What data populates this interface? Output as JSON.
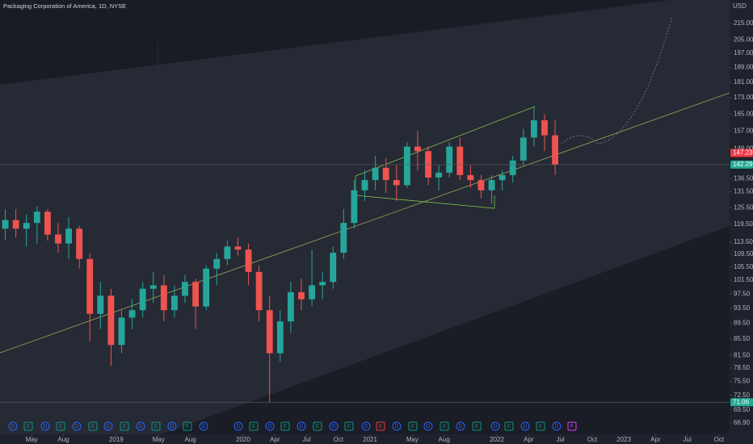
{
  "chart_data": {
    "type": "candlestick",
    "title": "Packaging Corporation of America, 1D, NYSE",
    "currency": "USD",
    "log": true,
    "up_color": "#26a69a",
    "down_color": "#ef5350",
    "ylim": [
      64.7,
      230.2
    ],
    "xlim": [
      "2018-02",
      "2023-11"
    ],
    "yticks": [
      {
        "value": 215,
        "label": "215.00"
      },
      {
        "value": 205,
        "label": "205.00"
      },
      {
        "value": 197,
        "label": "197.00"
      },
      {
        "value": 189,
        "label": "189.00"
      },
      {
        "value": 181,
        "label": "181.00"
      },
      {
        "value": 173,
        "label": "173.00"
      },
      {
        "value": 165,
        "label": "165.00"
      },
      {
        "value": 157,
        "label": "157.00"
      },
      {
        "value": 149,
        "label": "149.00"
      },
      {
        "value": 136.5,
        "label": "136.50"
      },
      {
        "value": 131.5,
        "label": "131.50"
      },
      {
        "value": 125.5,
        "label": "125.50"
      },
      {
        "value": 119.5,
        "label": "119.50"
      },
      {
        "value": 113.5,
        "label": "113.50"
      },
      {
        "value": 109.5,
        "label": "109.50"
      },
      {
        "value": 105.5,
        "label": "105.50"
      },
      {
        "value": 101.5,
        "label": "101.50"
      },
      {
        "value": 97.5,
        "label": "97.50"
      },
      {
        "value": 93.5,
        "label": "93.50"
      },
      {
        "value": 89.5,
        "label": "89.50"
      },
      {
        "value": 85.5,
        "label": "85.50"
      },
      {
        "value": 81.5,
        "label": "81.50"
      },
      {
        "value": 78.5,
        "label": "78.50"
      },
      {
        "value": 75.5,
        "label": "75.50"
      },
      {
        "value": 72.5,
        "label": "72.50"
      },
      {
        "value": 69.5,
        "label": "69.50"
      },
      {
        "value": 66.9,
        "label": "66.90"
      }
    ],
    "xticks": [
      {
        "value": "2018-05",
        "label": "May"
      },
      {
        "value": "2018-08",
        "label": "Aug"
      },
      {
        "value": "2019-01",
        "label": "2019"
      },
      {
        "value": "2019-05",
        "label": "May"
      },
      {
        "value": "2019-08",
        "label": "Aug"
      },
      {
        "value": "2020-01",
        "label": "2020"
      },
      {
        "value": "2020-04",
        "label": "Apr"
      },
      {
        "value": "2020-07",
        "label": "Jul"
      },
      {
        "value": "2020-10",
        "label": "Oct"
      },
      {
        "value": "2021-01",
        "label": "2021"
      },
      {
        "value": "2021-05",
        "label": "May"
      },
      {
        "value": "2021-08",
        "label": "Aug"
      },
      {
        "value": "2022-01",
        "label": "2022"
      },
      {
        "value": "2022-04",
        "label": "Apr"
      },
      {
        "value": "2022-07",
        "label": "Jul"
      },
      {
        "value": "2022-10",
        "label": "Oct"
      },
      {
        "value": "2023-01",
        "label": "2023"
      },
      {
        "value": "2023-04",
        "label": "Apr"
      },
      {
        "value": "2023-07",
        "label": "Jul"
      },
      {
        "value": "2023-10",
        "label": "Oct"
      }
    ],
    "price_labels": [
      {
        "value": 147.23,
        "label": "147.23",
        "color": "#f23645"
      },
      {
        "value": 142.29,
        "label": "142.29",
        "color": "#22ab94"
      },
      {
        "value": 71.06,
        "label": "71.06",
        "color": "#22ab94"
      }
    ],
    "x": [
      "2018-02",
      "2018-03",
      "2018-04",
      "2018-05",
      "2018-06",
      "2018-07",
      "2018-08",
      "2018-09",
      "2018-10",
      "2018-11",
      "2018-12",
      "2019-01",
      "2019-02",
      "2019-03",
      "2019-04",
      "2019-05",
      "2019-06",
      "2019-07",
      "2019-08",
      "2019-09",
      "2019-10",
      "2019-11",
      "2019-12",
      "2020-01",
      "2020-02",
      "2020-03",
      "2020-04",
      "2020-05",
      "2020-06",
      "2020-07",
      "2020-08",
      "2020-09",
      "2020-10",
      "2020-11",
      "2020-12",
      "2021-01",
      "2021-02",
      "2021-03",
      "2021-04",
      "2021-05",
      "2021-06",
      "2021-07",
      "2021-08",
      "2021-09",
      "2021-10",
      "2021-11",
      "2021-12",
      "2022-01",
      "2022-02",
      "2022-03",
      "2022-04",
      "2022-05",
      "2022-06"
    ],
    "open": [
      118,
      121,
      118,
      120,
      124,
      116,
      113,
      118,
      108,
      92,
      97,
      84,
      91,
      93,
      99,
      100,
      93,
      97,
      101,
      94,
      105,
      108,
      112,
      111,
      104,
      93,
      82,
      90,
      98,
      96,
      100,
      101,
      110,
      120,
      132,
      136,
      141,
      136,
      134,
      150,
      148,
      137,
      139,
      150,
      138,
      136,
      132,
      136,
      138,
      144,
      154,
      162,
      155
    ],
    "high": [
      125,
      125,
      123,
      126,
      125,
      120,
      122,
      119,
      110,
      101,
      99,
      93,
      96,
      101,
      104,
      103,
      100,
      103,
      102,
      106,
      110,
      114,
      115,
      113,
      106,
      97,
      93,
      101,
      102,
      111,
      104,
      112,
      125,
      136,
      140,
      146,
      145,
      142,
      152,
      157,
      150,
      142,
      152,
      154,
      142,
      138,
      138,
      140,
      146,
      158,
      169,
      165,
      162
    ],
    "low": [
      114,
      115,
      112,
      113,
      114,
      110,
      108,
      105,
      85,
      88,
      79,
      82,
      88,
      91,
      95,
      90,
      91,
      95,
      88,
      93,
      100,
      106,
      109,
      100,
      90,
      71,
      80,
      87,
      93,
      94,
      96,
      99,
      108,
      118,
      128,
      132,
      131,
      128,
      133,
      140,
      134,
      132,
      137,
      136,
      133,
      129,
      127,
      132,
      135,
      142,
      150,
      148,
      138
    ],
    "close": [
      121,
      118,
      120,
      124,
      116,
      113,
      118,
      108,
      92,
      97,
      84,
      91,
      93,
      99,
      100,
      93,
      97,
      101,
      94,
      105,
      108,
      112,
      111,
      104,
      93,
      82,
      90,
      98,
      96,
      100,
      101,
      110,
      120,
      132,
      136,
      141,
      136,
      134,
      150,
      148,
      137,
      139,
      150,
      138,
      136,
      132,
      136,
      138,
      144,
      154,
      162,
      155,
      142.29
    ],
    "events": [
      {
        "label": "D",
        "color": "#2962ff"
      },
      {
        "label": "E",
        "color": "#089981"
      },
      {
        "label": "D",
        "color": "#2962ff"
      },
      {
        "label": "E",
        "color": "#089981"
      },
      {
        "label": "D",
        "color": "#2962ff"
      },
      {
        "label": "E",
        "color": "#089981"
      },
      {
        "label": "D",
        "color": "#2962ff"
      },
      {
        "label": "E",
        "color": "#089981"
      },
      {
        "label": "D",
        "color": "#2962ff"
      },
      {
        "label": "E",
        "color": "#089981"
      },
      {
        "label": "D",
        "color": "#2962ff"
      },
      {
        "label": "E",
        "color": "#089981"
      },
      {
        "label": "D",
        "color": "#2962ff"
      },
      {
        "label": "D",
        "color": "#2962ff"
      },
      {
        "label": "E",
        "color": "#089981"
      },
      {
        "label": "D",
        "color": "#2962ff"
      },
      {
        "label": "E",
        "color": "#089981"
      },
      {
        "label": "D",
        "color": "#2962ff"
      },
      {
        "label": "E",
        "color": "#089981"
      },
      {
        "label": "D",
        "color": "#2962ff"
      },
      {
        "label": "E",
        "color": "#089981"
      },
      {
        "label": "D",
        "color": "#2962ff"
      },
      {
        "label": "E",
        "color": "#f23645"
      },
      {
        "label": "D",
        "color": "#2962ff"
      },
      {
        "label": "E",
        "color": "#089981"
      },
      {
        "label": "D",
        "color": "#2962ff"
      },
      {
        "label": "E",
        "color": "#089981"
      },
      {
        "label": "D",
        "color": "#2962ff"
      },
      {
        "label": "E",
        "color": "#089981"
      },
      {
        "label": "D",
        "color": "#2962ff"
      },
      {
        "label": "E",
        "color": "#089981"
      },
      {
        "label": "D",
        "color": "#2962ff"
      },
      {
        "label": "E",
        "color": "#089981"
      },
      {
        "label": "D",
        "color": "#2962ff"
      },
      {
        "label": "F",
        "color": "#e040fb"
      }
    ]
  }
}
